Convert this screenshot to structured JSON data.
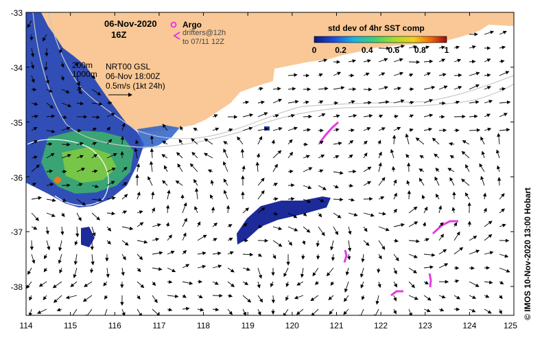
{
  "map": {
    "date_line1": "06-Nov-2020",
    "date_line2": "16Z",
    "argo_label": "Argo",
    "drifters_line1": "drifters@12h",
    "drifters_line2": "to 07/11 12Z",
    "colorbar_title": "std dev of 4hr SST comp",
    "colorbar_ticks": [
      "0",
      "0.2",
      "0.4",
      "0.6",
      "0.8",
      "1"
    ],
    "isobath_200": "200m",
    "isobath_1000": "1000m",
    "current_source": "NRT00 GSL",
    "current_time": "06-Nov 18:00Z",
    "current_scale": "0.5m/s (1kt 24h)",
    "credit": "© IMOS 10-Nov-2020 13:00 Hobart",
    "land_color": "#f9c896",
    "lon_ticks": [
      "114",
      "115",
      "116",
      "117",
      "118",
      "119",
      "120",
      "121",
      "122",
      "123",
      "124",
      "125"
    ],
    "lat_ticks": [
      "-33",
      "-34",
      "-35",
      "-36",
      "-37",
      "-38"
    ]
  }
}
